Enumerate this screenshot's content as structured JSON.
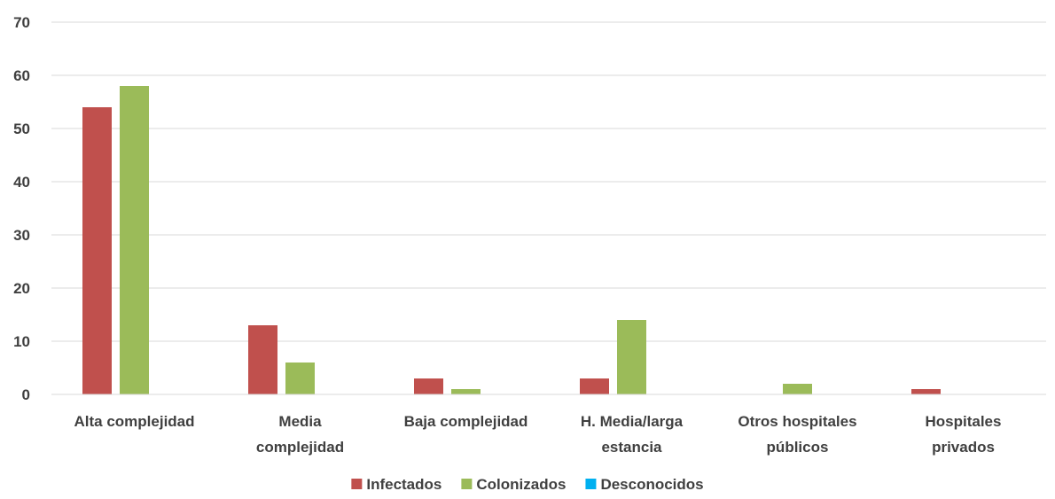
{
  "chart_data": {
    "type": "bar",
    "categories": [
      [
        "Alta complejidad"
      ],
      [
        "Media",
        "complejidad"
      ],
      [
        "Baja complejidad"
      ],
      [
        "H. Media/larga",
        "estancia"
      ],
      [
        "Otros hospitales",
        "públicos"
      ],
      [
        "Hospitales",
        "privados"
      ]
    ],
    "series": [
      {
        "name": "Infectados",
        "color": "#c0504d",
        "values": [
          54,
          13,
          3,
          3,
          0,
          1
        ]
      },
      {
        "name": "Colonizados",
        "color": "#9bbb59",
        "values": [
          58,
          6,
          1,
          14,
          2,
          0
        ]
      },
      {
        "name": "Desconocidos",
        "color": "#00b0f0",
        "values": [
          0,
          0,
          0,
          0,
          0,
          0
        ]
      }
    ],
    "ylim": [
      0,
      70
    ],
    "yticks": [
      0,
      10,
      20,
      30,
      40,
      50,
      60,
      70
    ],
    "grid": true,
    "legend": "bottom-center"
  }
}
